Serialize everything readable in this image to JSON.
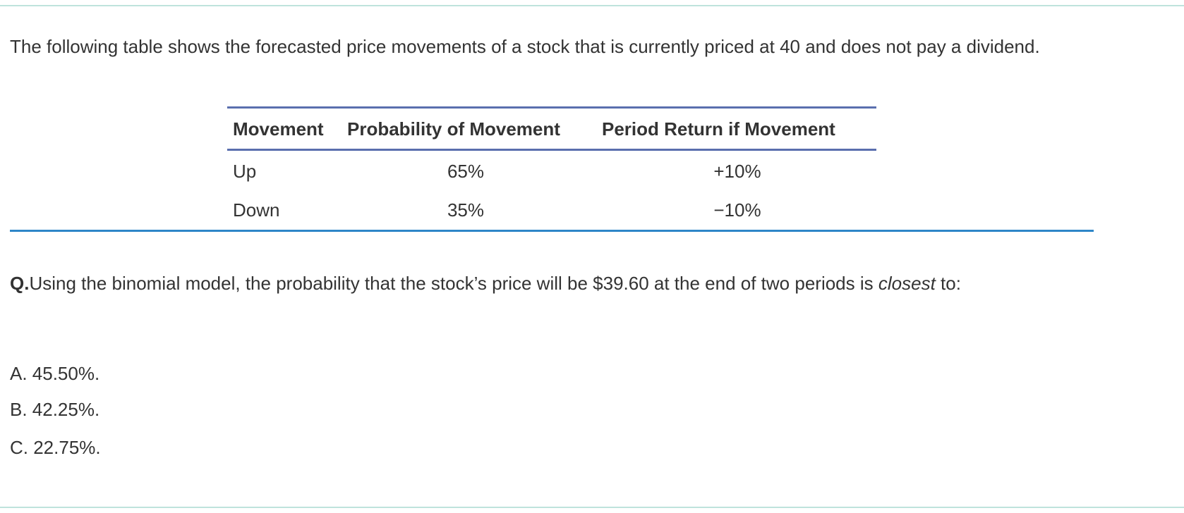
{
  "intro": "The following table shows the forecasted price movements of a stock that is currently priced at 40 and does not pay a dividend.",
  "table": {
    "headers": [
      "Movement",
      "Probability of Movement",
      "Period Return if Movement"
    ],
    "rows": [
      [
        "Up",
        "65%",
        "+10%"
      ],
      [
        "Down",
        "35%",
        "−10%"
      ]
    ]
  },
  "question": {
    "label": "Q.",
    "text_before": "Using the binomial model, the probability that the stock’s price will be $39.60 at the end of two periods is ",
    "emphasis": "closest",
    "text_after": " to:"
  },
  "options": [
    "A. 45.50%.",
    "B. 42.25%.",
    "C. 22.75%."
  ]
}
